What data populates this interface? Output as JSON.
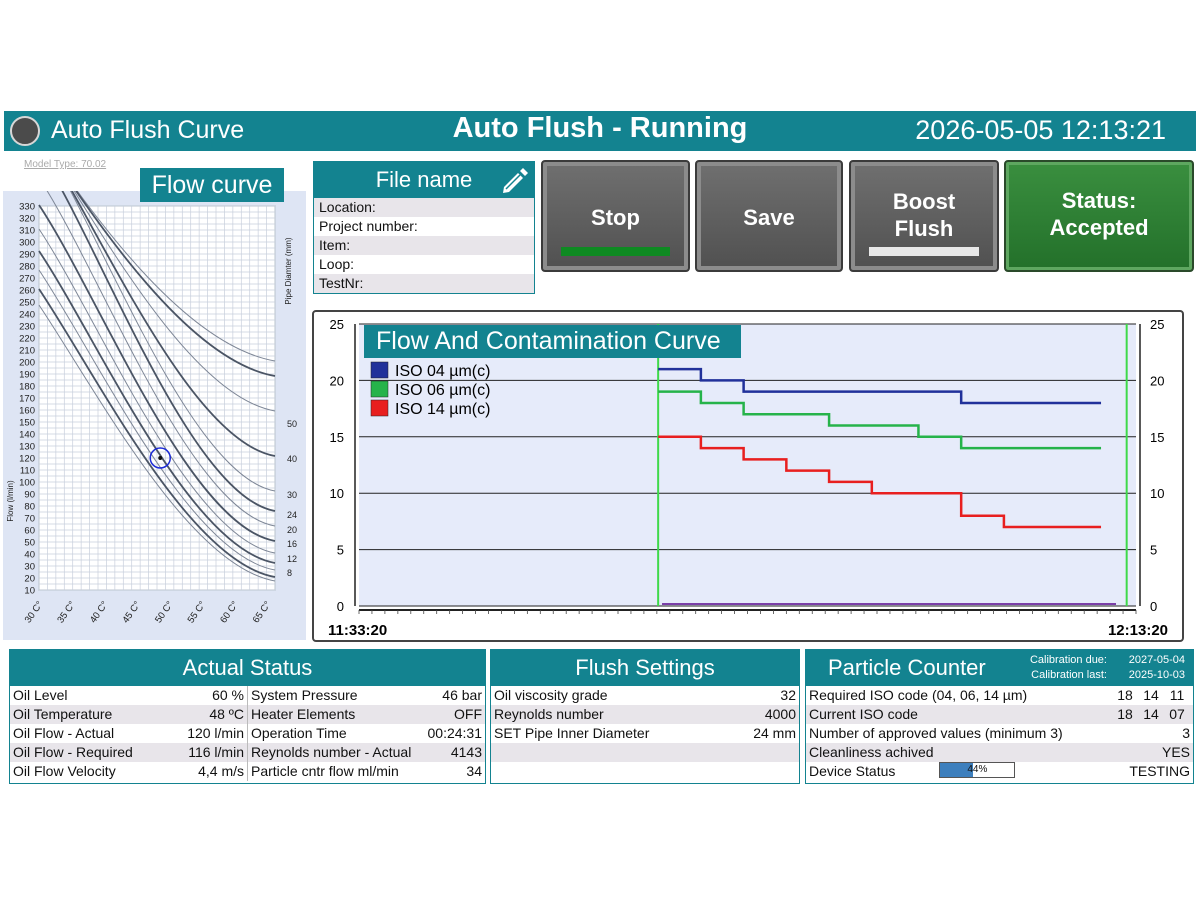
{
  "header": {
    "app_title": "Auto Flush Curve",
    "state": "Auto Flush - Running",
    "datetime": "2026-05-05 12:13:21"
  },
  "model_type": "Model Type: 70.02",
  "flow_curve": {
    "title": "Flow curve",
    "y_label": "Flow (l/min)",
    "right_label": "Pipe Diamter (mm)",
    "y_ticks": [
      "330",
      "320",
      "310",
      "300",
      "290",
      "280",
      "270",
      "260",
      "250",
      "240",
      "230",
      "220",
      "210",
      "200",
      "190",
      "180",
      "170",
      "160",
      "150",
      "140",
      "130",
      "120",
      "110",
      "100",
      "90",
      "80",
      "70",
      "60",
      "50",
      "40",
      "30",
      "20",
      "10"
    ],
    "x_ticks": [
      "30 C°",
      "35 C°",
      "40 C°",
      "45 C°",
      "50 C°",
      "55 C°",
      "60 C°",
      "65 C°"
    ],
    "diameter_ticks": [
      "50",
      "40",
      "30",
      "24",
      "20",
      "16",
      "12",
      "8"
    ],
    "operating_point": {
      "temperature_c": 48,
      "flow_lpm": 120
    }
  },
  "file_panel": {
    "title": "File name",
    "fields": [
      "Location:",
      "Project number:",
      "Item:",
      "Loop:",
      "TestNr:"
    ]
  },
  "buttons": {
    "stop": "Stop",
    "save": "Save",
    "boost_line1": "Boost",
    "boost_line2": "Flush",
    "status_line1": "Status:",
    "status_line2": "Accepted"
  },
  "colors": {
    "teal": "#138390",
    "stop_bar": "#0e8a22",
    "boost_bar": "#e8e8e8",
    "iso04": "#21319a",
    "iso06": "#26b34a",
    "iso14": "#e81f1f",
    "marker": "#3fd94a"
  },
  "chart_data": {
    "type": "line",
    "title": "Flow And Contamination Curve",
    "x_start": "11:33:20",
    "x_end": "12:13:20",
    "ylim": [
      0,
      25
    ],
    "y_ticks": [
      "0",
      "5",
      "10",
      "15",
      "20",
      "25"
    ],
    "legend": "top-left",
    "grid": "horizontal",
    "series": [
      {
        "name": "ISO 04 µm(c)",
        "color": "#21319a",
        "steps": [
          [
            0.385,
            21
          ],
          [
            0.44,
            20
          ],
          [
            0.495,
            19
          ],
          [
            0.72,
            19
          ],
          [
            0.775,
            18
          ],
          [
            0.955,
            18
          ]
        ]
      },
      {
        "name": "ISO 06 µm(c)",
        "color": "#26b34a",
        "steps": [
          [
            0.385,
            19
          ],
          [
            0.44,
            18
          ],
          [
            0.495,
            17
          ],
          [
            0.55,
            17
          ],
          [
            0.605,
            16
          ],
          [
            0.66,
            16
          ],
          [
            0.72,
            15
          ],
          [
            0.775,
            14
          ],
          [
            0.955,
            14
          ]
        ]
      },
      {
        "name": "ISO 14 µm(c)",
        "color": "#e81f1f",
        "steps": [
          [
            0.385,
            15
          ],
          [
            0.44,
            14
          ],
          [
            0.495,
            13
          ],
          [
            0.55,
            12
          ],
          [
            0.605,
            11
          ],
          [
            0.66,
            10
          ],
          [
            0.72,
            10
          ],
          [
            0.775,
            8
          ],
          [
            0.83,
            7
          ],
          [
            0.955,
            7
          ]
        ]
      }
    ]
  },
  "actual_status": {
    "title": "Actual Status",
    "left": [
      {
        "label": "Oil Level",
        "value": "60 %"
      },
      {
        "label": "Oil Temperature",
        "value": "48 ºC"
      },
      {
        "label": "Oil Flow - Actual",
        "value": "120 l/min"
      },
      {
        "label": "Oil Flow - Required",
        "value": "116 l/min"
      },
      {
        "label": "Oil Flow Velocity",
        "value": "4,4 m/s"
      }
    ],
    "right": [
      {
        "label": "System Pressure",
        "value": "46 bar"
      },
      {
        "label": "Heater Elements",
        "value": "OFF"
      },
      {
        "label": "Operation Time",
        "value": "00:24:31"
      },
      {
        "label": "Reynolds number - Actual",
        "value": "4143"
      },
      {
        "label": "Particle cntr flow ml/min",
        "value": "34"
      }
    ]
  },
  "flush_settings": {
    "title": "Flush Settings",
    "rows": [
      {
        "label": "Oil viscosity grade",
        "value": "32"
      },
      {
        "label": "Reynolds number",
        "value": "4000"
      },
      {
        "label": "SET Pipe Inner Diameter",
        "value": "24 mm"
      },
      {
        "label": "",
        "value": ""
      },
      {
        "label": "",
        "value": ""
      }
    ]
  },
  "particle_counter": {
    "title": "Particle Counter",
    "calibration_due_label": "Calibration due:",
    "calibration_due": "2027-05-04",
    "calibration_last_label": "Calibration last:",
    "calibration_last": "2025-10-03",
    "required_label": "Required ISO code (04, 06, 14 µm)",
    "required": [
      "18",
      "14",
      "11"
    ],
    "current_label": "Current ISO code",
    "current": [
      "18",
      "14",
      "07"
    ],
    "approved_label": "Number of approved values (minimum 3)",
    "approved_value": "3",
    "cleanliness_label": "Cleanliness achived",
    "cleanliness_value": "YES",
    "device_label": "Device Status",
    "device_progress_text": "44%",
    "device_progress": 0.44,
    "device_state": "TESTING"
  }
}
